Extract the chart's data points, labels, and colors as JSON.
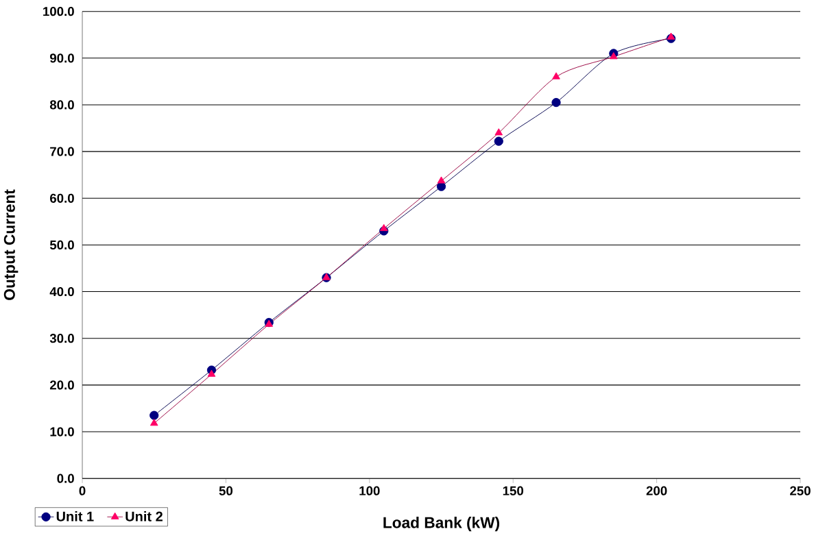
{
  "chart_data": {
    "type": "line",
    "xlabel": "Load Bank (kW)",
    "ylabel": "Output Current",
    "x": [
      25,
      45,
      65,
      85,
      105,
      125,
      145,
      165,
      185,
      205
    ],
    "series": [
      {
        "name": "Unit 1",
        "color": "#000080",
        "marker": "circle",
        "values": [
          13.5,
          23.2,
          33.4,
          43.0,
          53.0,
          62.5,
          72.2,
          80.5,
          91.0,
          94.2
        ]
      },
      {
        "name": "Unit 2",
        "color": "#ff0066",
        "marker": "triangle",
        "values": [
          11.8,
          22.3,
          33.0,
          43.0,
          53.5,
          63.7,
          74.0,
          86.0,
          90.3,
          94.5
        ]
      }
    ],
    "xlim": [
      0,
      250
    ],
    "xticks": [
      0,
      50,
      100,
      150,
      200,
      250
    ],
    "ylim": [
      0,
      100
    ],
    "yticks": [
      {
        "value": 0,
        "label": "0.0"
      },
      {
        "value": 10,
        "label": "10.0"
      },
      {
        "value": 20,
        "label": "20.0"
      },
      {
        "value": 30,
        "label": "30.0"
      },
      {
        "value": 40,
        "label": "40.0"
      },
      {
        "value": 50,
        "label": "50.0"
      },
      {
        "value": 60,
        "label": "60.0"
      },
      {
        "value": 70,
        "label": "70.0"
      },
      {
        "value": 80,
        "label": "80.0"
      },
      {
        "value": 90,
        "label": "90.0"
      },
      {
        "value": 100,
        "label": "100.0"
      }
    ],
    "grid": "y",
    "legend": "bottom left"
  }
}
